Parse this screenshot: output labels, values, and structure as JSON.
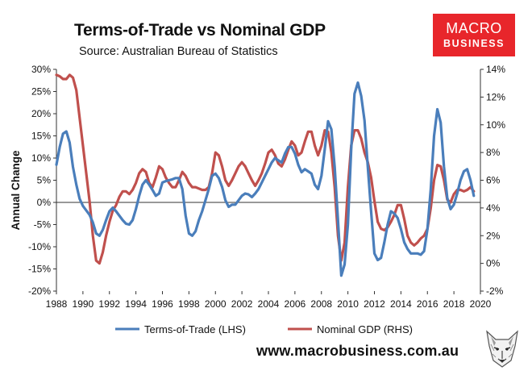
{
  "brand": {
    "line1": "MACRO",
    "line2": "BUSINESS",
    "color": "#e8262b"
  },
  "footer": {
    "website": "www.macrobusiness.com.au"
  },
  "chart_data": {
    "type": "line",
    "title": "Terms-of-Trade vs Nominal GDP",
    "subtitle": "Source: Australian Bureau of Statistics",
    "ylabel": "Annual Change",
    "xlabel": "",
    "x_ticks": [
      "1988",
      "1990",
      "1992",
      "1994",
      "1996",
      "1998",
      "2000",
      "2002",
      "2004",
      "2006",
      "2008",
      "2010",
      "2012",
      "2014",
      "2016",
      "2018",
      "2020"
    ],
    "x_range": [
      1988,
      2020
    ],
    "y_left": {
      "ticks": [
        "-20%",
        "-15%",
        "-10%",
        "-5%",
        "0%",
        "5%",
        "10%",
        "15%",
        "20%",
        "25%",
        "30%"
      ],
      "range": [
        -20,
        30
      ]
    },
    "y_right": {
      "ticks": [
        "-2%",
        "0%",
        "2%",
        "4%",
        "6%",
        "8%",
        "10%",
        "12%",
        "14%"
      ],
      "range": [
        -2,
        14
      ]
    },
    "grid": false,
    "legend_position": "bottom",
    "series": [
      {
        "name": "Terms-of-Trade (LHS)",
        "axis": "left",
        "color": "#4a7ebb",
        "points": [
          [
            1988.0,
            8.5
          ],
          [
            1988.25,
            12.5
          ],
          [
            1988.5,
            15.5
          ],
          [
            1988.75,
            16
          ],
          [
            1989.0,
            13.5
          ],
          [
            1989.25,
            8
          ],
          [
            1989.5,
            4
          ],
          [
            1989.75,
            0.8
          ],
          [
            1990.0,
            -0.8
          ],
          [
            1990.25,
            -1.8
          ],
          [
            1990.5,
            -2.8
          ],
          [
            1990.75,
            -4.5
          ],
          [
            1991.0,
            -7
          ],
          [
            1991.25,
            -7.5
          ],
          [
            1991.5,
            -6.2
          ],
          [
            1991.75,
            -4
          ],
          [
            1992.0,
            -2
          ],
          [
            1992.25,
            -1.2
          ],
          [
            1992.5,
            -2
          ],
          [
            1992.75,
            -3
          ],
          [
            1993.0,
            -4
          ],
          [
            1993.25,
            -4.8
          ],
          [
            1993.5,
            -5
          ],
          [
            1993.75,
            -4
          ],
          [
            1994.0,
            -1.5
          ],
          [
            1994.25,
            1.5
          ],
          [
            1994.5,
            4
          ],
          [
            1994.75,
            5
          ],
          [
            1995.0,
            4
          ],
          [
            1995.25,
            2.8
          ],
          [
            1995.5,
            1.5
          ],
          [
            1995.75,
            2
          ],
          [
            1996.0,
            4.5
          ],
          [
            1996.25,
            4.8
          ],
          [
            1996.5,
            5
          ],
          [
            1996.75,
            5.2
          ],
          [
            1997.0,
            5.5
          ],
          [
            1997.25,
            5.5
          ],
          [
            1997.5,
            3
          ],
          [
            1997.75,
            -3
          ],
          [
            1998.0,
            -7
          ],
          [
            1998.25,
            -7.5
          ],
          [
            1998.5,
            -6.5
          ],
          [
            1998.75,
            -4
          ],
          [
            1999.0,
            -2
          ],
          [
            1999.25,
            0.5
          ],
          [
            1999.5,
            3
          ],
          [
            1999.75,
            6
          ],
          [
            2000.0,
            6.5
          ],
          [
            2000.25,
            5.5
          ],
          [
            2000.5,
            3.5
          ],
          [
            2000.75,
            0.5
          ],
          [
            2001.0,
            -1
          ],
          [
            2001.25,
            -0.5
          ],
          [
            2001.5,
            -0.5
          ],
          [
            2001.75,
            0.5
          ],
          [
            2002.0,
            1.5
          ],
          [
            2002.25,
            2
          ],
          [
            2002.5,
            1.8
          ],
          [
            2002.75,
            1.2
          ],
          [
            2003.0,
            2
          ],
          [
            2003.25,
            3
          ],
          [
            2003.5,
            4.5
          ],
          [
            2003.75,
            6
          ],
          [
            2004.0,
            7.5
          ],
          [
            2004.25,
            9
          ],
          [
            2004.5,
            10
          ],
          [
            2004.75,
            9.5
          ],
          [
            2005.0,
            9
          ],
          [
            2005.25,
            11
          ],
          [
            2005.5,
            12.5
          ],
          [
            2005.75,
            12.5
          ],
          [
            2006.0,
            11
          ],
          [
            2006.25,
            8.5
          ],
          [
            2006.5,
            6.8
          ],
          [
            2006.75,
            7.5
          ],
          [
            2007.0,
            7
          ],
          [
            2007.25,
            6.5
          ],
          [
            2007.5,
            4
          ],
          [
            2007.75,
            3
          ],
          [
            2008.0,
            6
          ],
          [
            2008.25,
            12
          ],
          [
            2008.5,
            18.3
          ],
          [
            2008.75,
            16.5
          ],
          [
            2009.0,
            8
          ],
          [
            2009.25,
            -4
          ],
          [
            2009.5,
            -16.5
          ],
          [
            2009.75,
            -14
          ],
          [
            2010.0,
            -5
          ],
          [
            2010.25,
            12
          ],
          [
            2010.5,
            24.5
          ],
          [
            2010.75,
            27
          ],
          [
            2011.0,
            24
          ],
          [
            2011.25,
            18.5
          ],
          [
            2011.5,
            8
          ],
          [
            2011.75,
            -2
          ],
          [
            2012.0,
            -11.5
          ],
          [
            2012.25,
            -13
          ],
          [
            2012.5,
            -12.5
          ],
          [
            2012.75,
            -9
          ],
          [
            2013.0,
            -5
          ],
          [
            2013.25,
            -2
          ],
          [
            2013.5,
            -2.5
          ],
          [
            2013.75,
            -3.5
          ],
          [
            2014.0,
            -6
          ],
          [
            2014.25,
            -9
          ],
          [
            2014.5,
            -10.5
          ],
          [
            2014.75,
            -11.5
          ],
          [
            2015.0,
            -11.5
          ],
          [
            2015.25,
            -11.5
          ],
          [
            2015.5,
            -11.8
          ],
          [
            2015.75,
            -11
          ],
          [
            2016.0,
            -6
          ],
          [
            2016.25,
            3
          ],
          [
            2016.5,
            15
          ],
          [
            2016.75,
            21
          ],
          [
            2017.0,
            18
          ],
          [
            2017.25,
            8
          ],
          [
            2017.5,
            1
          ],
          [
            2017.75,
            -1.5
          ],
          [
            2018.0,
            -0.5
          ],
          [
            2018.25,
            2
          ],
          [
            2018.5,
            5
          ],
          [
            2018.75,
            7
          ],
          [
            2019.0,
            7.5
          ],
          [
            2019.25,
            5
          ],
          [
            2019.5,
            1.5
          ]
        ]
      },
      {
        "name": "Nominal GDP (RHS)",
        "axis": "right",
        "color": "#c0504d",
        "points": [
          [
            1988.0,
            13.6
          ],
          [
            1988.25,
            13.5
          ],
          [
            1988.5,
            13.3
          ],
          [
            1988.75,
            13.3
          ],
          [
            1989.0,
            13.6
          ],
          [
            1989.25,
            13.4
          ],
          [
            1989.5,
            12.5
          ],
          [
            1989.75,
            10.5
          ],
          [
            1990.0,
            8.5
          ],
          [
            1990.25,
            6.5
          ],
          [
            1990.5,
            4.5
          ],
          [
            1990.75,
            2
          ],
          [
            1991.0,
            0.2
          ],
          [
            1991.25,
            0
          ],
          [
            1991.5,
            0.8
          ],
          [
            1991.75,
            2
          ],
          [
            1992.0,
            3
          ],
          [
            1992.25,
            3.8
          ],
          [
            1992.5,
            4.2
          ],
          [
            1992.75,
            4.8
          ],
          [
            1993.0,
            5.2
          ],
          [
            1993.25,
            5.2
          ],
          [
            1993.5,
            5
          ],
          [
            1993.75,
            5.3
          ],
          [
            1994.0,
            5.8
          ],
          [
            1994.25,
            6.5
          ],
          [
            1994.5,
            6.8
          ],
          [
            1994.75,
            6.6
          ],
          [
            1995.0,
            5.8
          ],
          [
            1995.25,
            5.5
          ],
          [
            1995.5,
            6.2
          ],
          [
            1995.75,
            7
          ],
          [
            1996.0,
            6.8
          ],
          [
            1996.25,
            6.2
          ],
          [
            1996.5,
            5.8
          ],
          [
            1996.75,
            5.5
          ],
          [
            1997.0,
            5.5
          ],
          [
            1997.25,
            6
          ],
          [
            1997.5,
            6.6
          ],
          [
            1997.75,
            6.3
          ],
          [
            1998.0,
            5.8
          ],
          [
            1998.25,
            5.5
          ],
          [
            1998.5,
            5.5
          ],
          [
            1998.75,
            5.4
          ],
          [
            1999.0,
            5.3
          ],
          [
            1999.25,
            5.3
          ],
          [
            1999.5,
            5.5
          ],
          [
            1999.75,
            6.5
          ],
          [
            2000.0,
            8
          ],
          [
            2000.25,
            7.8
          ],
          [
            2000.5,
            7
          ],
          [
            2000.75,
            6
          ],
          [
            2001.0,
            5.6
          ],
          [
            2001.25,
            6
          ],
          [
            2001.5,
            6.5
          ],
          [
            2001.75,
            7
          ],
          [
            2002.0,
            7.3
          ],
          [
            2002.25,
            7
          ],
          [
            2002.5,
            6.5
          ],
          [
            2002.75,
            6
          ],
          [
            2003.0,
            5.6
          ],
          [
            2003.25,
            6
          ],
          [
            2003.5,
            6.5
          ],
          [
            2003.75,
            7.2
          ],
          [
            2004.0,
            8
          ],
          [
            2004.25,
            8.2
          ],
          [
            2004.5,
            7.8
          ],
          [
            2004.75,
            7.2
          ],
          [
            2005.0,
            7
          ],
          [
            2005.25,
            7.5
          ],
          [
            2005.5,
            8.2
          ],
          [
            2005.75,
            8.8
          ],
          [
            2006.0,
            8.5
          ],
          [
            2006.25,
            7.8
          ],
          [
            2006.5,
            8
          ],
          [
            2006.75,
            8.8
          ],
          [
            2007.0,
            9.5
          ],
          [
            2007.25,
            9.5
          ],
          [
            2007.5,
            8.5
          ],
          [
            2007.75,
            7.8
          ],
          [
            2008.0,
            8.5
          ],
          [
            2008.25,
            9.6
          ],
          [
            2008.5,
            9.5
          ],
          [
            2008.75,
            8
          ],
          [
            2009.0,
            5.5
          ],
          [
            2009.25,
            2
          ],
          [
            2009.5,
            0.2
          ],
          [
            2009.75,
            1.5
          ],
          [
            2010.0,
            5.5
          ],
          [
            2010.25,
            8.5
          ],
          [
            2010.5,
            9.6
          ],
          [
            2010.75,
            9.6
          ],
          [
            2011.0,
            9
          ],
          [
            2011.25,
            8
          ],
          [
            2011.5,
            7.3
          ],
          [
            2011.75,
            6.2
          ],
          [
            2012.0,
            4.5
          ],
          [
            2012.25,
            3
          ],
          [
            2012.5,
            2.5
          ],
          [
            2012.75,
            2.4
          ],
          [
            2013.0,
            2.6
          ],
          [
            2013.25,
            3
          ],
          [
            2013.5,
            3.5
          ],
          [
            2013.75,
            4.2
          ],
          [
            2014.0,
            4.2
          ],
          [
            2014.25,
            3.2
          ],
          [
            2014.5,
            2
          ],
          [
            2014.75,
            1.5
          ],
          [
            2015.0,
            1.3
          ],
          [
            2015.25,
            1.5
          ],
          [
            2015.5,
            1.8
          ],
          [
            2015.75,
            2
          ],
          [
            2016.0,
            2.5
          ],
          [
            2016.25,
            4
          ],
          [
            2016.5,
            6
          ],
          [
            2016.75,
            7.1
          ],
          [
            2017.0,
            7
          ],
          [
            2017.25,
            6
          ],
          [
            2017.5,
            4.6
          ],
          [
            2017.75,
            4.4
          ],
          [
            2018.0,
            5
          ],
          [
            2018.25,
            5.3
          ],
          [
            2018.5,
            5.3
          ],
          [
            2018.75,
            5.2
          ],
          [
            2019.0,
            5.3
          ],
          [
            2019.25,
            5.5
          ],
          [
            2019.5,
            5.2
          ]
        ]
      }
    ]
  }
}
